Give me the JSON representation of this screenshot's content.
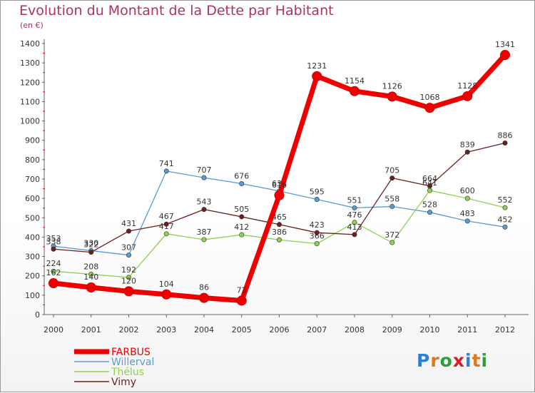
{
  "title": "Evolution du Montant de la Dette par Habitant",
  "subtitle": "(en €)",
  "logo_text": "Proxiti",
  "chart_data": {
    "type": "line",
    "title": "Evolution du Montant de la Dette par Habitant",
    "subtitle": "(en €)",
    "x": [
      "2000",
      "2001",
      "2002",
      "2003",
      "2004",
      "2005",
      "2006",
      "2007",
      "2008",
      "2009",
      "2010",
      "2011",
      "2012"
    ],
    "ylim": [
      0,
      1400
    ],
    "yticks": [
      0,
      100,
      200,
      300,
      400,
      500,
      600,
      700,
      800,
      900,
      1000,
      1100,
      1200,
      1300,
      1400
    ],
    "grid": false,
    "legend": "bottom-left",
    "series": [
      {
        "name": "FARBUS",
        "color": "#ee0000",
        "values": [
          162,
          140,
          120,
          104,
          86,
          72,
          616,
          1231,
          1154,
          1126,
          1068,
          1128,
          1341
        ]
      },
      {
        "name": "Willerval",
        "color": "#5b9bd5",
        "values": [
          353,
          330,
          307,
          741,
          707,
          676,
          638,
          595,
          551,
          558,
          528,
          483,
          452
        ]
      },
      {
        "name": "Thélus",
        "color": "#8fd14f",
        "values": [
          224,
          208,
          192,
          417,
          387,
          412,
          386,
          366,
          476,
          372,
          641,
          600,
          552
        ]
      },
      {
        "name": "Vimy",
        "color": "#6b1f1f",
        "values": [
          338,
          322,
          431,
          467,
          543,
          505,
          465,
          423,
          413,
          705,
          664,
          839,
          886
        ]
      }
    ]
  }
}
